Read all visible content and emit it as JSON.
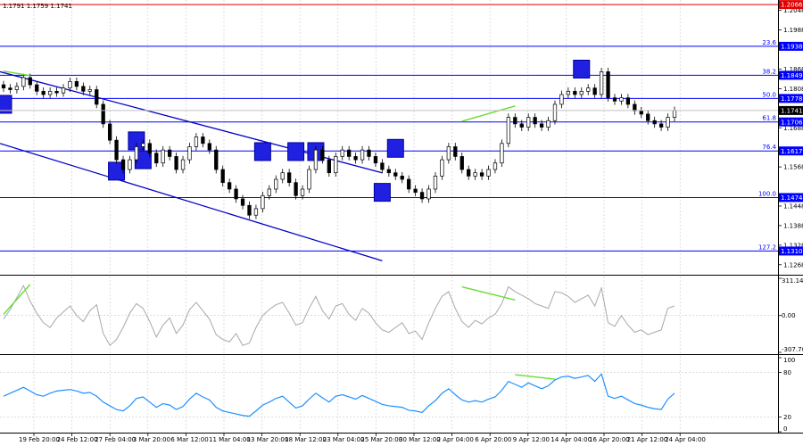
{
  "header": {
    "ohlc_text": "1.1791 1.1759 1.1741"
  },
  "chart_data": [
    {
      "type": "candlestick",
      "title": "",
      "x_ticks": [
        "19 Feb 20:00",
        "24 Feb 12:00",
        "27 Feb 04:00",
        "3 Mar 20:00",
        "6 Mar 12:00",
        "11 Mar 04:00",
        "13 Mar 20:00",
        "18 Mar 12:00",
        "23 Mar 04:00",
        "25 Mar 20:00",
        "30 Mar 12:00",
        "2 Apr 04:00",
        "6 Apr 20:00",
        "9 Apr 12:00",
        "14 Apr 04:00",
        "16 Apr 20:00",
        "21 Apr 12:00",
        "24 Apr 04:00"
      ],
      "y_ticks": [
        1.2048,
        1.1988,
        1.1868,
        1.1808,
        1.1688,
        1.1568,
        1.1448,
        1.1388,
        1.1328,
        1.1268
      ],
      "ylim": [
        1.124,
        1.208
      ],
      "fib_levels": [
        {
          "label": "",
          "price": 1.2066
        },
        {
          "label": "23.6",
          "price": 1.1938
        },
        {
          "label": "38.2",
          "price": 1.1849
        },
        {
          "label": "50.0",
          "price": 1.1778
        },
        {
          "label": "61.8",
          "price": 1.1706
        },
        {
          "label": "76.4",
          "price": 1.1617
        },
        {
          "label": "100.0",
          "price": 1.1474
        },
        {
          "label": "127.2",
          "price": 1.131
        }
      ],
      "price_tags": [
        "1.2066",
        "1.1938",
        "1.1849",
        "1.1778",
        "1.1741",
        "1.1706",
        "1.1617",
        "1.1474",
        "1.1310"
      ],
      "current_price": 1.1741,
      "closes": [
        1.181,
        1.1805,
        1.1815,
        1.1842,
        1.182,
        1.18,
        1.179,
        1.18,
        1.1795,
        1.181,
        1.183,
        1.1815,
        1.18,
        1.1805,
        1.176,
        1.17,
        1.165,
        1.159,
        1.156,
        1.159,
        1.163,
        1.164,
        1.161,
        1.158,
        1.162,
        1.16,
        1.156,
        1.159,
        1.163,
        1.166,
        1.164,
        1.162,
        1.156,
        1.152,
        1.15,
        1.147,
        1.145,
        1.142,
        1.144,
        1.148,
        1.15,
        1.153,
        1.155,
        1.152,
        1.148,
        1.15,
        1.156,
        1.162,
        1.159,
        1.155,
        1.16,
        1.162,
        1.16,
        1.159,
        1.162,
        1.16,
        1.158,
        1.156,
        1.155,
        1.154,
        1.153,
        1.15,
        1.149,
        1.147,
        1.15,
        1.154,
        1.159,
        1.163,
        1.16,
        1.156,
        1.154,
        1.155,
        1.154,
        1.156,
        1.158,
        1.164,
        1.172,
        1.17,
        1.169,
        1.172,
        1.17,
        1.169,
        1.171,
        1.176,
        1.179,
        1.18,
        1.179,
        1.18,
        1.181,
        1.179,
        1.186,
        1.178,
        1.177,
        1.178,
        1.176,
        1.174,
        1.173,
        1.171,
        1.17,
        1.169,
        1.172,
        1.1741
      ],
      "channel": {
        "upper": [
          {
            "bar": 0,
            "price": 1.186
          },
          {
            "bar": 57,
            "price": 1.155
          }
        ],
        "lower": [
          {
            "bar": 0,
            "price": 1.164
          },
          {
            "bar": 57,
            "price": 1.128
          }
        ]
      },
      "boxes": [
        {
          "bar": 0,
          "price": 1.176
        },
        {
          "bar": 17,
          "price": 1.1555
        },
        {
          "bar": 20,
          "price": 1.1648
        },
        {
          "bar": 21,
          "price": 1.159
        },
        {
          "bar": 39,
          "price": 1.1615
        },
        {
          "bar": 44,
          "price": 1.1615
        },
        {
          "bar": 47,
          "price": 1.1615
        },
        {
          "bar": 57,
          "price": 1.149
        },
        {
          "bar": 59,
          "price": 1.1625
        },
        {
          "bar": 87,
          "price": 1.1868
        }
      ],
      "divergences": [
        {
          "from": {
            "bar": 0,
            "price": 1.1862
          },
          "to": {
            "bar": 4,
            "price": 1.1848
          }
        },
        {
          "from": {
            "bar": 69,
            "price": 1.1708
          },
          "to": {
            "bar": 77,
            "price": 1.1755
          }
        }
      ]
    },
    {
      "type": "line",
      "name": "oscillator",
      "y_ticks": [
        "311.1497",
        "0.00",
        "-307.704"
      ],
      "ylim": [
        -307.704,
        311.1497
      ],
      "values": [
        -30,
        50,
        150,
        250,
        120,
        20,
        -60,
        -100,
        -20,
        30,
        80,
        0,
        -50,
        40,
        90,
        -150,
        -250,
        -200,
        -100,
        20,
        100,
        60,
        -50,
        -180,
        -80,
        -20,
        -150,
        -80,
        50,
        110,
        40,
        -30,
        -160,
        -200,
        -220,
        -150,
        -250,
        -230,
        -100,
        0,
        50,
        90,
        110,
        20,
        -80,
        -60,
        60,
        160,
        40,
        -30,
        80,
        100,
        10,
        -40,
        60,
        20,
        -60,
        -120,
        -140,
        -100,
        -60,
        -150,
        -130,
        -200,
        -60,
        60,
        160,
        200,
        60,
        -50,
        -100,
        -40,
        -70,
        -20,
        10,
        100,
        240,
        200,
        170,
        140,
        100,
        80,
        60,
        200,
        190,
        160,
        110,
        140,
        170,
        80,
        230,
        -60,
        -90,
        0,
        -80,
        -140,
        -120,
        -160,
        -140,
        -120,
        60,
        80
      ]
    },
    {
      "type": "line",
      "name": "rsi",
      "y_ticks": [
        "100",
        "80",
        "20",
        "0"
      ],
      "ylim": [
        0,
        100
      ],
      "values": [
        48,
        52,
        56,
        60,
        55,
        50,
        48,
        52,
        55,
        56,
        57,
        55,
        52,
        53,
        48,
        40,
        35,
        30,
        28,
        35,
        45,
        47,
        40,
        33,
        38,
        36,
        30,
        34,
        44,
        52,
        47,
        43,
        33,
        28,
        26,
        24,
        22,
        21,
        28,
        36,
        40,
        45,
        48,
        40,
        32,
        35,
        44,
        52,
        46,
        40,
        48,
        50,
        47,
        44,
        49,
        45,
        41,
        37,
        35,
        34,
        33,
        29,
        28,
        26,
        35,
        42,
        52,
        58,
        50,
        43,
        40,
        42,
        40,
        44,
        47,
        56,
        68,
        64,
        60,
        66,
        62,
        58,
        62,
        70,
        74,
        75,
        72,
        74,
        76,
        68,
        78,
        48,
        45,
        48,
        43,
        38,
        36,
        33,
        31,
        30,
        44,
        52
      ]
    }
  ]
}
